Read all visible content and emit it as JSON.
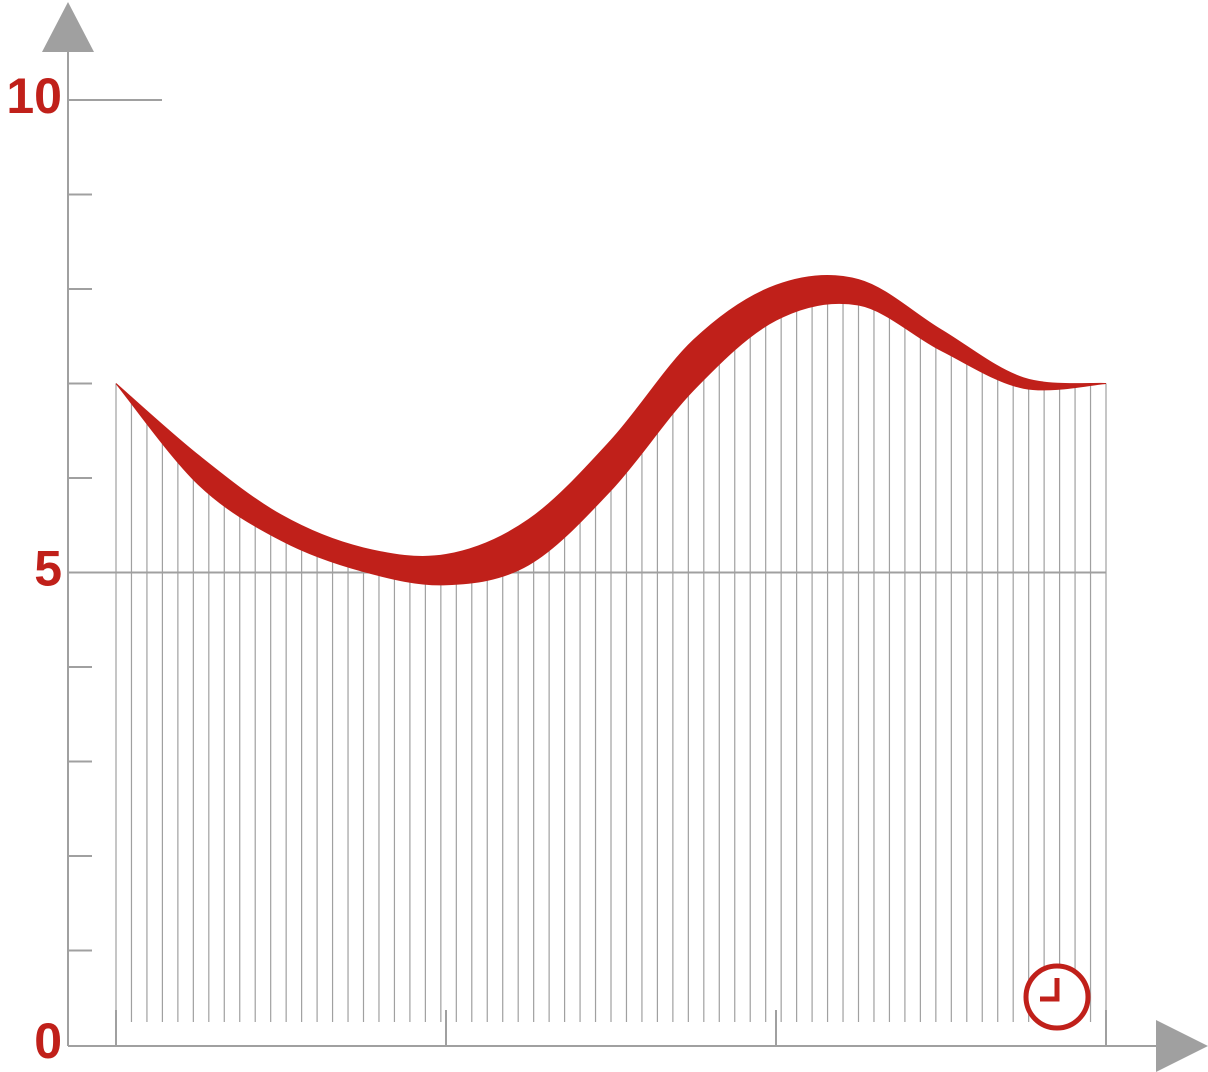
{
  "chart_data": {
    "type": "band",
    "x": [
      0,
      0.25,
      0.5,
      0.75,
      1,
      1.25,
      1.5,
      1.75,
      2,
      2.25,
      2.5,
      2.75,
      3
    ],
    "upper": [
      7.0,
      6.24,
      5.61,
      5.26,
      5.19,
      5.56,
      6.4,
      7.46,
      8.04,
      8.1,
      7.57,
      7.06,
      7.0
    ],
    "lower": [
      7.0,
      5.93,
      5.34,
      5.01,
      4.87,
      5.08,
      5.87,
      6.93,
      7.67,
      7.83,
      7.35,
      6.95,
      7.0
    ],
    "color": "#c0201a",
    "xlim": [
      0,
      3
    ],
    "xticks": [
      0,
      1,
      2,
      3
    ],
    "ylim": [
      0,
      10
    ],
    "yticks": [
      0,
      5,
      10
    ],
    "yminorticks": [
      1,
      2,
      3,
      4,
      6,
      7,
      8,
      9
    ]
  }
}
